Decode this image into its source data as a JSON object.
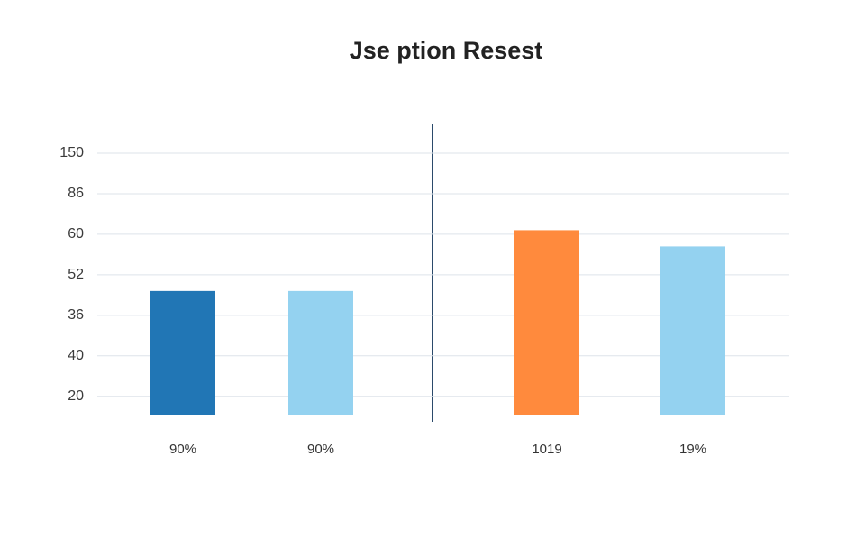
{
  "chart_data": {
    "type": "bar",
    "title": "Jse ption Resest",
    "categories": [
      "90%",
      "90%",
      "1019",
      "19%"
    ],
    "series": [
      {
        "colors": [
          "#2176b5",
          "#94d2f0",
          "#ff8a3d",
          "#94d2f0"
        ]
      }
    ],
    "values": [
      3.6,
      3.6,
      5.1,
      4.7
    ],
    "colors": [
      "#2176b5",
      "#94d2f0",
      "#ff8a3d",
      "#94d2f0"
    ],
    "ylim": [
      0.55,
      7.2
    ],
    "yticks": [
      {
        "value": 1,
        "label": "20"
      },
      {
        "value": 2,
        "label": "40"
      },
      {
        "value": 3,
        "label": "36"
      },
      {
        "value": 4,
        "label": "52"
      },
      {
        "value": 5,
        "label": "60"
      },
      {
        "value": 6,
        "label": "86"
      },
      {
        "value": 7,
        "label": "150"
      }
    ],
    "grid": true
  }
}
